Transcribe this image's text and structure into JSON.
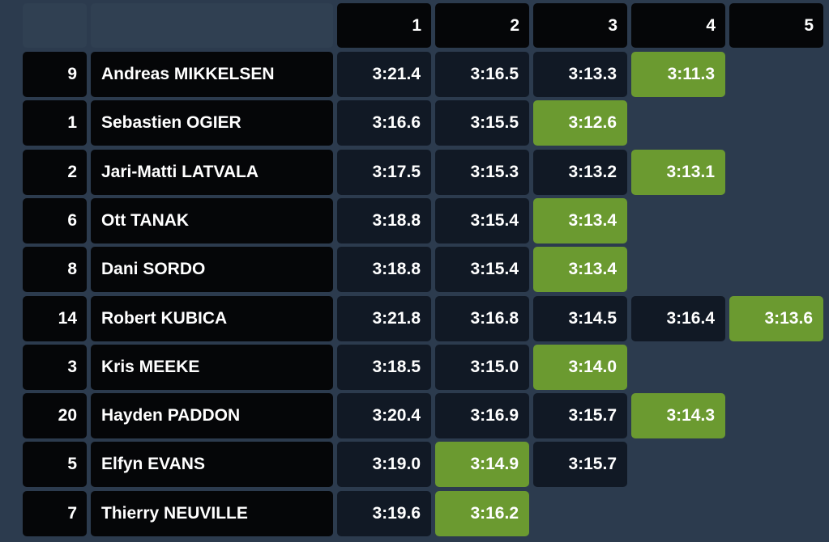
{
  "header": {
    "columns": [
      "1",
      "2",
      "3",
      "4",
      "5"
    ]
  },
  "rows": [
    {
      "number": "9",
      "name": "Andreas MIKKELSEN",
      "times": [
        "3:21.4",
        "3:16.5",
        "3:13.3",
        "3:11.3"
      ],
      "best": 3
    },
    {
      "number": "1",
      "name": "Sebastien OGIER",
      "times": [
        "3:16.6",
        "3:15.5",
        "3:12.6"
      ],
      "best": 2
    },
    {
      "number": "2",
      "name": "Jari-Matti LATVALA",
      "times": [
        "3:17.5",
        "3:15.3",
        "3:13.2",
        "3:13.1"
      ],
      "best": 3
    },
    {
      "number": "6",
      "name": "Ott TANAK",
      "times": [
        "3:18.8",
        "3:15.4",
        "3:13.4"
      ],
      "best": 2
    },
    {
      "number": "8",
      "name": "Dani SORDO",
      "times": [
        "3:18.8",
        "3:15.4",
        "3:13.4"
      ],
      "best": 2
    },
    {
      "number": "14",
      "name": "Robert KUBICA",
      "times": [
        "3:21.8",
        "3:16.8",
        "3:14.5",
        "3:16.4",
        "3:13.6"
      ],
      "best": 4
    },
    {
      "number": "3",
      "name": "Kris MEEKE",
      "times": [
        "3:18.5",
        "3:15.0",
        "3:14.0"
      ],
      "best": 2
    },
    {
      "number": "20",
      "name": "Hayden PADDON",
      "times": [
        "3:20.4",
        "3:16.9",
        "3:15.7",
        "3:14.3"
      ],
      "best": 3
    },
    {
      "number": "5",
      "name": "Elfyn EVANS",
      "times": [
        "3:19.0",
        "3:14.9",
        "3:15.7"
      ],
      "best": 1
    },
    {
      "number": "7",
      "name": "Thierry NEUVILLE",
      "times": [
        "3:19.6",
        "3:16.2"
      ],
      "best": 1
    }
  ]
}
